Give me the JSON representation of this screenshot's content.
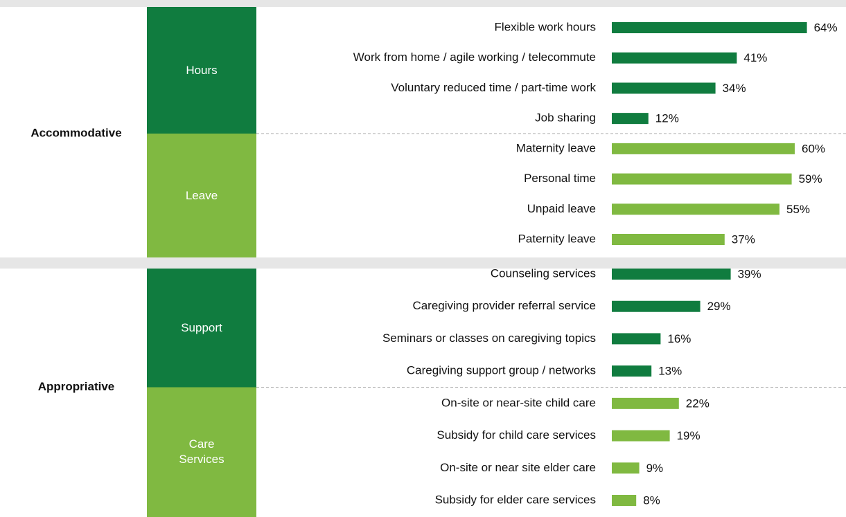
{
  "chart_data": {
    "type": "bar",
    "orientation": "horizontal",
    "sections": [
      {
        "name": "Accommodative",
        "groups": [
          {
            "name": "Hours",
            "color": "#107c3f",
            "categories": [
              "Flexible work hours",
              "Work from home / agile working / telecommute",
              "Voluntary reduced time / part-time work",
              "Job sharing"
            ],
            "values": [
              64,
              41,
              34,
              12
            ],
            "value_labels": [
              "64%",
              "41%",
              "34%",
              "12%"
            ]
          },
          {
            "name": "Leave",
            "color": "#80b941",
            "categories": [
              "Maternity leave",
              "Personal time",
              "Unpaid leave",
              "Paternity leave"
            ],
            "values": [
              60,
              59,
              55,
              37
            ],
            "value_labels": [
              "60%",
              "59%",
              "55%",
              "37%"
            ]
          }
        ]
      },
      {
        "name": "Appropriative",
        "groups": [
          {
            "name": "Support",
            "color": "#107c3f",
            "categories": [
              "Counseling services",
              "Caregiving provider referral service",
              "Seminars or classes on caregiving topics",
              "Caregiving support group / networks"
            ],
            "values": [
              39,
              29,
              16,
              13
            ],
            "value_labels": [
              "39%",
              "29%",
              "16%",
              "13%"
            ]
          },
          {
            "name": "Care Services",
            "color": "#80b941",
            "categories": [
              "On-site or near-site child care",
              "Subsidy for child care services",
              "On-site or near site elder care",
              "Subsidy for elder care services"
            ],
            "values": [
              22,
              19,
              9,
              8
            ],
            "value_labels": [
              "22%",
              "19%",
              "9%",
              "8%"
            ]
          }
        ]
      }
    ]
  }
}
